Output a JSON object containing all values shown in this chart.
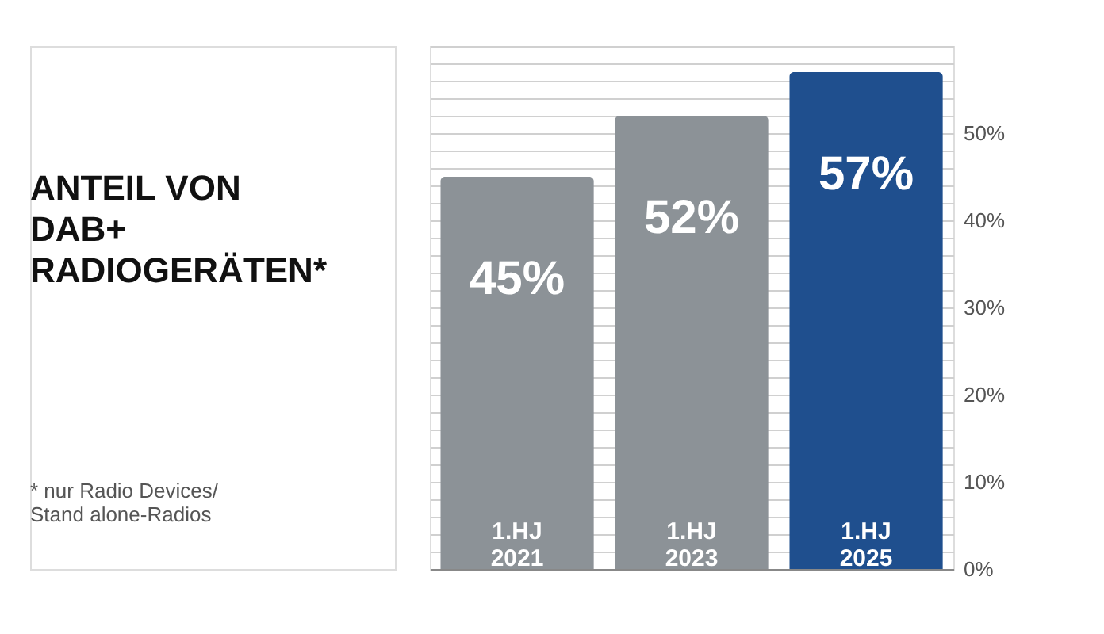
{
  "chart_data": {
    "type": "bar",
    "title": "ANTEIL VON\nDAB+\nRADIOGERÄTEN*",
    "annotations": [
      "* nur Radio Devices/\nStand alone-Radios"
    ],
    "categories": [
      "1.HJ\n2021",
      "1.HJ\n2023",
      "1.HJ\n2025"
    ],
    "values": [
      45,
      52,
      57
    ],
    "colors": [
      "#8c9297",
      "#8c9297",
      "#1f4f8e"
    ],
    "value_labels": [
      "45%",
      "52%",
      "57%"
    ],
    "ylim": [
      0,
      60
    ],
    "yticks": [
      {
        "value": 0,
        "label": "0%"
      },
      {
        "value": 2,
        "label": null
      },
      {
        "value": 4,
        "label": null
      },
      {
        "value": 6,
        "label": null
      },
      {
        "value": 8,
        "label": null
      },
      {
        "value": 10,
        "label": "10%"
      },
      {
        "value": 12,
        "label": null
      },
      {
        "value": 14,
        "label": null
      },
      {
        "value": 16,
        "label": null
      },
      {
        "value": 18,
        "label": null
      },
      {
        "value": 20,
        "label": "20%"
      },
      {
        "value": 22,
        "label": null
      },
      {
        "value": 24,
        "label": null
      },
      {
        "value": 26,
        "label": null
      },
      {
        "value": 28,
        "label": null
      },
      {
        "value": 30,
        "label": "30%"
      },
      {
        "value": 32,
        "label": null
      },
      {
        "value": 34,
        "label": null
      },
      {
        "value": 36,
        "label": null
      },
      {
        "value": 38,
        "label": null
      },
      {
        "value": 40,
        "label": "40%"
      },
      {
        "value": 42,
        "label": null
      },
      {
        "value": 44,
        "label": null
      },
      {
        "value": 46,
        "label": null
      },
      {
        "value": 48,
        "label": null
      },
      {
        "value": 50,
        "label": "50%"
      },
      {
        "value": 52,
        "label": null
      },
      {
        "value": 54,
        "label": null
      },
      {
        "value": 56,
        "label": null
      },
      {
        "value": 58,
        "label": null
      },
      {
        "value": 60,
        "label": null
      }
    ],
    "grid": "y",
    "tick_labels": "y"
  }
}
